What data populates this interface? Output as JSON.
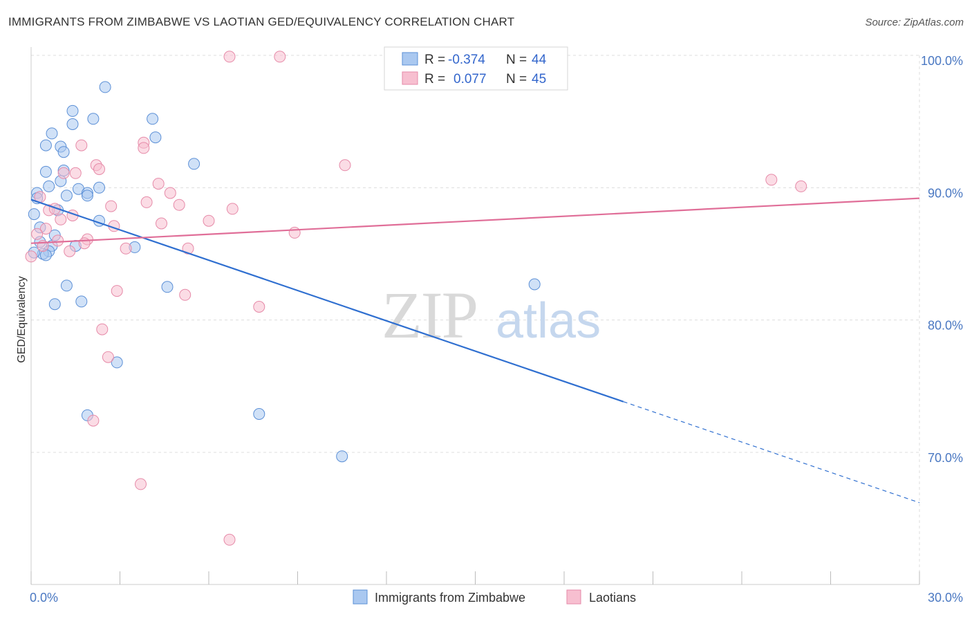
{
  "title": "IMMIGRANTS FROM ZIMBABWE VS LAOTIAN GED/EQUIVALENCY CORRELATION CHART",
  "source": "Source: ZipAtlas.com",
  "watermark": {
    "zip": "ZIP",
    "atlas": "atlas"
  },
  "legend_top": [
    {
      "r_label": "R =",
      "r_value": "-0.374",
      "n_label": "N =",
      "n_value": "44"
    },
    {
      "r_label": "R =",
      "r_value": "0.077",
      "n_label": "N =",
      "n_value": "45"
    }
  ],
  "legend_bottom": [
    "Immigrants from Zimbabwe",
    "Laotians"
  ],
  "colors": {
    "blue_fill": "#aac8f0",
    "blue_stroke": "#5b8fd6",
    "blue_line": "#2f6fd0",
    "pink_fill": "#f7bfd0",
    "pink_stroke": "#e68aa8",
    "pink_line": "#e06e98",
    "grid": "#dddddd",
    "axis_text": "#4a78c2"
  },
  "chart_data": {
    "type": "scatter",
    "title": "IMMIGRANTS FROM ZIMBABWE VS LAOTIAN GED/EQUIVALENCY CORRELATION CHART",
    "xlabel": "",
    "ylabel": "GED/Equivalency",
    "xlim": [
      0,
      30
    ],
    "ylim": [
      60,
      102
    ],
    "x_ticks": [
      "0.0%",
      "30.0%"
    ],
    "y_ticks": [
      {
        "value": 70,
        "label": "70.0%"
      },
      {
        "value": 80,
        "label": "80.0%"
      },
      {
        "value": 90,
        "label": "90.0%"
      },
      {
        "value": 100,
        "label": "100.0%"
      }
    ],
    "grid": true,
    "legend_position": "top-center",
    "series": [
      {
        "name": "Immigrants from Zimbabwe",
        "r": -0.374,
        "n": 44,
        "trend": {
          "x0": 0.0,
          "y0": 89.1,
          "x_solid_end": 20.0,
          "x_end": 30.0,
          "y_end": 66.2
        },
        "points": [
          [
            2.5,
            97.6
          ],
          [
            1.4,
            95.8
          ],
          [
            2.1,
            95.2
          ],
          [
            4.1,
            95.2
          ],
          [
            1.4,
            94.8
          ],
          [
            0.7,
            94.1
          ],
          [
            4.2,
            93.8
          ],
          [
            0.5,
            93.2
          ],
          [
            1.0,
            93.1
          ],
          [
            1.1,
            92.7
          ],
          [
            5.5,
            91.8
          ],
          [
            0.5,
            91.2
          ],
          [
            1.1,
            91.3
          ],
          [
            1.0,
            90.5
          ],
          [
            0.6,
            90.1
          ],
          [
            2.3,
            90.0
          ],
          [
            1.6,
            89.9
          ],
          [
            1.9,
            89.6
          ],
          [
            0.2,
            89.6
          ],
          [
            1.2,
            89.4
          ],
          [
            1.9,
            89.4
          ],
          [
            0.2,
            89.2
          ],
          [
            0.9,
            88.3
          ],
          [
            0.1,
            88.0
          ],
          [
            2.3,
            87.5
          ],
          [
            0.3,
            87.0
          ],
          [
            0.8,
            86.4
          ],
          [
            0.3,
            85.9
          ],
          [
            0.7,
            85.6
          ],
          [
            1.5,
            85.6
          ],
          [
            3.5,
            85.5
          ],
          [
            0.6,
            85.2
          ],
          [
            0.4,
            85.0
          ],
          [
            0.5,
            84.9
          ],
          [
            17.0,
            82.7
          ],
          [
            1.2,
            82.6
          ],
          [
            4.6,
            82.5
          ],
          [
            1.7,
            81.4
          ],
          [
            0.8,
            81.2
          ],
          [
            2.9,
            76.8
          ],
          [
            1.9,
            72.8
          ],
          [
            7.7,
            72.9
          ],
          [
            10.5,
            69.7
          ],
          [
            0.1,
            85.1
          ]
        ]
      },
      {
        "name": "Laotians",
        "r": 0.077,
        "n": 45,
        "trend": {
          "x0": 0.0,
          "y0": 85.8,
          "x_end": 30.0,
          "y_end": 89.2
        },
        "points": [
          [
            6.7,
            99.9
          ],
          [
            8.4,
            99.9
          ],
          [
            3.8,
            93.4
          ],
          [
            1.7,
            93.2
          ],
          [
            3.8,
            93.0
          ],
          [
            2.2,
            91.7
          ],
          [
            10.6,
            91.7
          ],
          [
            2.3,
            91.4
          ],
          [
            1.1,
            91.1
          ],
          [
            1.5,
            91.1
          ],
          [
            25.0,
            90.6
          ],
          [
            4.3,
            90.3
          ],
          [
            26.0,
            90.1
          ],
          [
            4.7,
            89.6
          ],
          [
            0.3,
            89.3
          ],
          [
            3.9,
            88.9
          ],
          [
            5.0,
            88.7
          ],
          [
            2.7,
            88.6
          ],
          [
            6.8,
            88.4
          ],
          [
            0.6,
            88.3
          ],
          [
            0.8,
            88.4
          ],
          [
            1.4,
            87.9
          ],
          [
            1.0,
            87.6
          ],
          [
            6.0,
            87.5
          ],
          [
            4.4,
            87.3
          ],
          [
            2.8,
            87.1
          ],
          [
            0.5,
            86.9
          ],
          [
            8.9,
            86.6
          ],
          [
            0.2,
            86.5
          ],
          [
            1.9,
            86.1
          ],
          [
            0.9,
            86.0
          ],
          [
            1.8,
            85.8
          ],
          [
            0.4,
            85.6
          ],
          [
            3.2,
            85.4
          ],
          [
            5.3,
            85.4
          ],
          [
            1.3,
            85.2
          ],
          [
            0.0,
            84.8
          ],
          [
            2.9,
            82.2
          ],
          [
            5.2,
            81.9
          ],
          [
            7.7,
            81.0
          ],
          [
            2.4,
            79.3
          ],
          [
            2.6,
            77.2
          ],
          [
            2.1,
            72.4
          ],
          [
            3.7,
            67.6
          ],
          [
            6.7,
            63.4
          ]
        ]
      }
    ]
  }
}
